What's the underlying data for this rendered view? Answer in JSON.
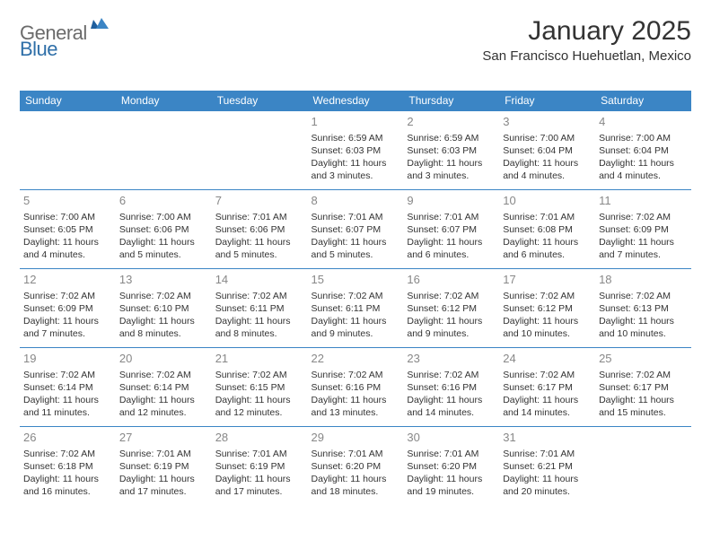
{
  "logo": {
    "general": "General",
    "blue": "Blue"
  },
  "title": "January 2025",
  "location": "San Francisco Huehuetlan, Mexico",
  "colors": {
    "header_bg": "#3b85c5",
    "header_text": "#ffffff",
    "body_text": "#333333",
    "daynum_text": "#888888",
    "logo_gray": "#6b6b6b",
    "logo_blue": "#2f6fa8",
    "row_border": "#3b85c5",
    "background": "#ffffff"
  },
  "typography": {
    "title_fontsize": 30,
    "location_fontsize": 15,
    "header_cell_fontsize": 12,
    "daynum_fontsize": 13,
    "body_fontsize": 10.5,
    "logo_fontsize": 22
  },
  "weekdays": [
    "Sunday",
    "Monday",
    "Tuesday",
    "Wednesday",
    "Thursday",
    "Friday",
    "Saturday"
  ],
  "weeks": [
    [
      null,
      null,
      null,
      {
        "n": "1",
        "sr": "Sunrise: 6:59 AM",
        "ss": "Sunset: 6:03 PM",
        "d1": "Daylight: 11 hours",
        "d2": "and 3 minutes."
      },
      {
        "n": "2",
        "sr": "Sunrise: 6:59 AM",
        "ss": "Sunset: 6:03 PM",
        "d1": "Daylight: 11 hours",
        "d2": "and 3 minutes."
      },
      {
        "n": "3",
        "sr": "Sunrise: 7:00 AM",
        "ss": "Sunset: 6:04 PM",
        "d1": "Daylight: 11 hours",
        "d2": "and 4 minutes."
      },
      {
        "n": "4",
        "sr": "Sunrise: 7:00 AM",
        "ss": "Sunset: 6:04 PM",
        "d1": "Daylight: 11 hours",
        "d2": "and 4 minutes."
      }
    ],
    [
      {
        "n": "5",
        "sr": "Sunrise: 7:00 AM",
        "ss": "Sunset: 6:05 PM",
        "d1": "Daylight: 11 hours",
        "d2": "and 4 minutes."
      },
      {
        "n": "6",
        "sr": "Sunrise: 7:00 AM",
        "ss": "Sunset: 6:06 PM",
        "d1": "Daylight: 11 hours",
        "d2": "and 5 minutes."
      },
      {
        "n": "7",
        "sr": "Sunrise: 7:01 AM",
        "ss": "Sunset: 6:06 PM",
        "d1": "Daylight: 11 hours",
        "d2": "and 5 minutes."
      },
      {
        "n": "8",
        "sr": "Sunrise: 7:01 AM",
        "ss": "Sunset: 6:07 PM",
        "d1": "Daylight: 11 hours",
        "d2": "and 5 minutes."
      },
      {
        "n": "9",
        "sr": "Sunrise: 7:01 AM",
        "ss": "Sunset: 6:07 PM",
        "d1": "Daylight: 11 hours",
        "d2": "and 6 minutes."
      },
      {
        "n": "10",
        "sr": "Sunrise: 7:01 AM",
        "ss": "Sunset: 6:08 PM",
        "d1": "Daylight: 11 hours",
        "d2": "and 6 minutes."
      },
      {
        "n": "11",
        "sr": "Sunrise: 7:02 AM",
        "ss": "Sunset: 6:09 PM",
        "d1": "Daylight: 11 hours",
        "d2": "and 7 minutes."
      }
    ],
    [
      {
        "n": "12",
        "sr": "Sunrise: 7:02 AM",
        "ss": "Sunset: 6:09 PM",
        "d1": "Daylight: 11 hours",
        "d2": "and 7 minutes."
      },
      {
        "n": "13",
        "sr": "Sunrise: 7:02 AM",
        "ss": "Sunset: 6:10 PM",
        "d1": "Daylight: 11 hours",
        "d2": "and 8 minutes."
      },
      {
        "n": "14",
        "sr": "Sunrise: 7:02 AM",
        "ss": "Sunset: 6:11 PM",
        "d1": "Daylight: 11 hours",
        "d2": "and 8 minutes."
      },
      {
        "n": "15",
        "sr": "Sunrise: 7:02 AM",
        "ss": "Sunset: 6:11 PM",
        "d1": "Daylight: 11 hours",
        "d2": "and 9 minutes."
      },
      {
        "n": "16",
        "sr": "Sunrise: 7:02 AM",
        "ss": "Sunset: 6:12 PM",
        "d1": "Daylight: 11 hours",
        "d2": "and 9 minutes."
      },
      {
        "n": "17",
        "sr": "Sunrise: 7:02 AM",
        "ss": "Sunset: 6:12 PM",
        "d1": "Daylight: 11 hours",
        "d2": "and 10 minutes."
      },
      {
        "n": "18",
        "sr": "Sunrise: 7:02 AM",
        "ss": "Sunset: 6:13 PM",
        "d1": "Daylight: 11 hours",
        "d2": "and 10 minutes."
      }
    ],
    [
      {
        "n": "19",
        "sr": "Sunrise: 7:02 AM",
        "ss": "Sunset: 6:14 PM",
        "d1": "Daylight: 11 hours",
        "d2": "and 11 minutes."
      },
      {
        "n": "20",
        "sr": "Sunrise: 7:02 AM",
        "ss": "Sunset: 6:14 PM",
        "d1": "Daylight: 11 hours",
        "d2": "and 12 minutes."
      },
      {
        "n": "21",
        "sr": "Sunrise: 7:02 AM",
        "ss": "Sunset: 6:15 PM",
        "d1": "Daylight: 11 hours",
        "d2": "and 12 minutes."
      },
      {
        "n": "22",
        "sr": "Sunrise: 7:02 AM",
        "ss": "Sunset: 6:16 PM",
        "d1": "Daylight: 11 hours",
        "d2": "and 13 minutes."
      },
      {
        "n": "23",
        "sr": "Sunrise: 7:02 AM",
        "ss": "Sunset: 6:16 PM",
        "d1": "Daylight: 11 hours",
        "d2": "and 14 minutes."
      },
      {
        "n": "24",
        "sr": "Sunrise: 7:02 AM",
        "ss": "Sunset: 6:17 PM",
        "d1": "Daylight: 11 hours",
        "d2": "and 14 minutes."
      },
      {
        "n": "25",
        "sr": "Sunrise: 7:02 AM",
        "ss": "Sunset: 6:17 PM",
        "d1": "Daylight: 11 hours",
        "d2": "and 15 minutes."
      }
    ],
    [
      {
        "n": "26",
        "sr": "Sunrise: 7:02 AM",
        "ss": "Sunset: 6:18 PM",
        "d1": "Daylight: 11 hours",
        "d2": "and 16 minutes."
      },
      {
        "n": "27",
        "sr": "Sunrise: 7:01 AM",
        "ss": "Sunset: 6:19 PM",
        "d1": "Daylight: 11 hours",
        "d2": "and 17 minutes."
      },
      {
        "n": "28",
        "sr": "Sunrise: 7:01 AM",
        "ss": "Sunset: 6:19 PM",
        "d1": "Daylight: 11 hours",
        "d2": "and 17 minutes."
      },
      {
        "n": "29",
        "sr": "Sunrise: 7:01 AM",
        "ss": "Sunset: 6:20 PM",
        "d1": "Daylight: 11 hours",
        "d2": "and 18 minutes."
      },
      {
        "n": "30",
        "sr": "Sunrise: 7:01 AM",
        "ss": "Sunset: 6:20 PM",
        "d1": "Daylight: 11 hours",
        "d2": "and 19 minutes."
      },
      {
        "n": "31",
        "sr": "Sunrise: 7:01 AM",
        "ss": "Sunset: 6:21 PM",
        "d1": "Daylight: 11 hours",
        "d2": "and 20 minutes."
      },
      null
    ]
  ]
}
